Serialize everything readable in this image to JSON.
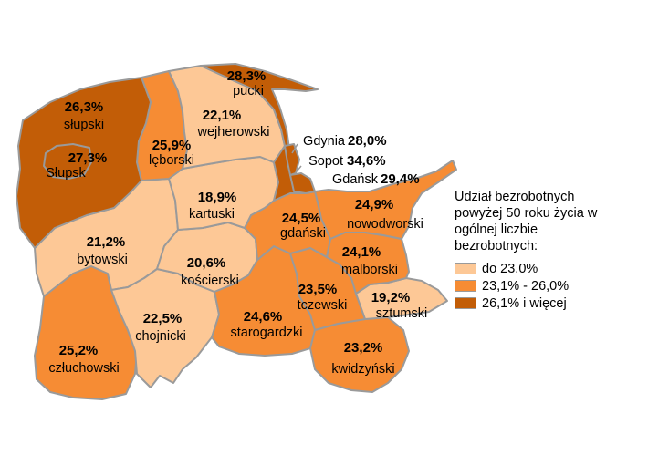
{
  "legend": {
    "title": "Udział bezrobotnych powyżej 50 roku życia w ogólnej liczbie bezrobotnych:",
    "items": [
      {
        "label": "do 23,0%",
        "color": "#fdc896"
      },
      {
        "label": "23,1% - 26,0%",
        "color": "#f68c34"
      },
      {
        "label": "26,1% i więcej",
        "color": "#c25d07"
      }
    ]
  },
  "regions": {
    "slupski": {
      "name": "słupski",
      "value": "26,3%"
    },
    "slupsk": {
      "name": "Słupsk",
      "value": "27,3%"
    },
    "leborski": {
      "name": "lęborski",
      "value": "25,9%"
    },
    "wejherowski": {
      "name": "wejherowski",
      "value": "22,1%"
    },
    "pucki": {
      "name": "pucki",
      "value": "28,3%"
    },
    "kartuski": {
      "name": "kartuski",
      "value": "18,9%"
    },
    "bytowski": {
      "name": "bytowski",
      "value": "21,2%"
    },
    "koscierski": {
      "name": "kościerski",
      "value": "20,6%"
    },
    "gdanski": {
      "name": "gdański",
      "value": "24,5%"
    },
    "nowodworski": {
      "name": "nowodworski",
      "value": "24,9%"
    },
    "malborski": {
      "name": "malborski",
      "value": "24,1%"
    },
    "tczewski": {
      "name": "tczewski",
      "value": "23,5%"
    },
    "sztumski": {
      "name": "sztumski",
      "value": "19,2%"
    },
    "starogardzki": {
      "name": "starogardzki",
      "value": "24,6%"
    },
    "chojnicki": {
      "name": "chojnicki",
      "value": "22,5%"
    },
    "czluchowski": {
      "name": "człuchowski",
      "value": "25,2%"
    },
    "kwidzynski": {
      "name": "kwidzyński",
      "value": "23,2%"
    }
  },
  "cities": {
    "gdynia": {
      "name": "Gdynia",
      "value": "28,0%"
    },
    "sopot": {
      "name": "Sopot",
      "value": "34,6%"
    },
    "gdansk": {
      "name": "Gdańsk",
      "value": "29,4%"
    }
  }
}
